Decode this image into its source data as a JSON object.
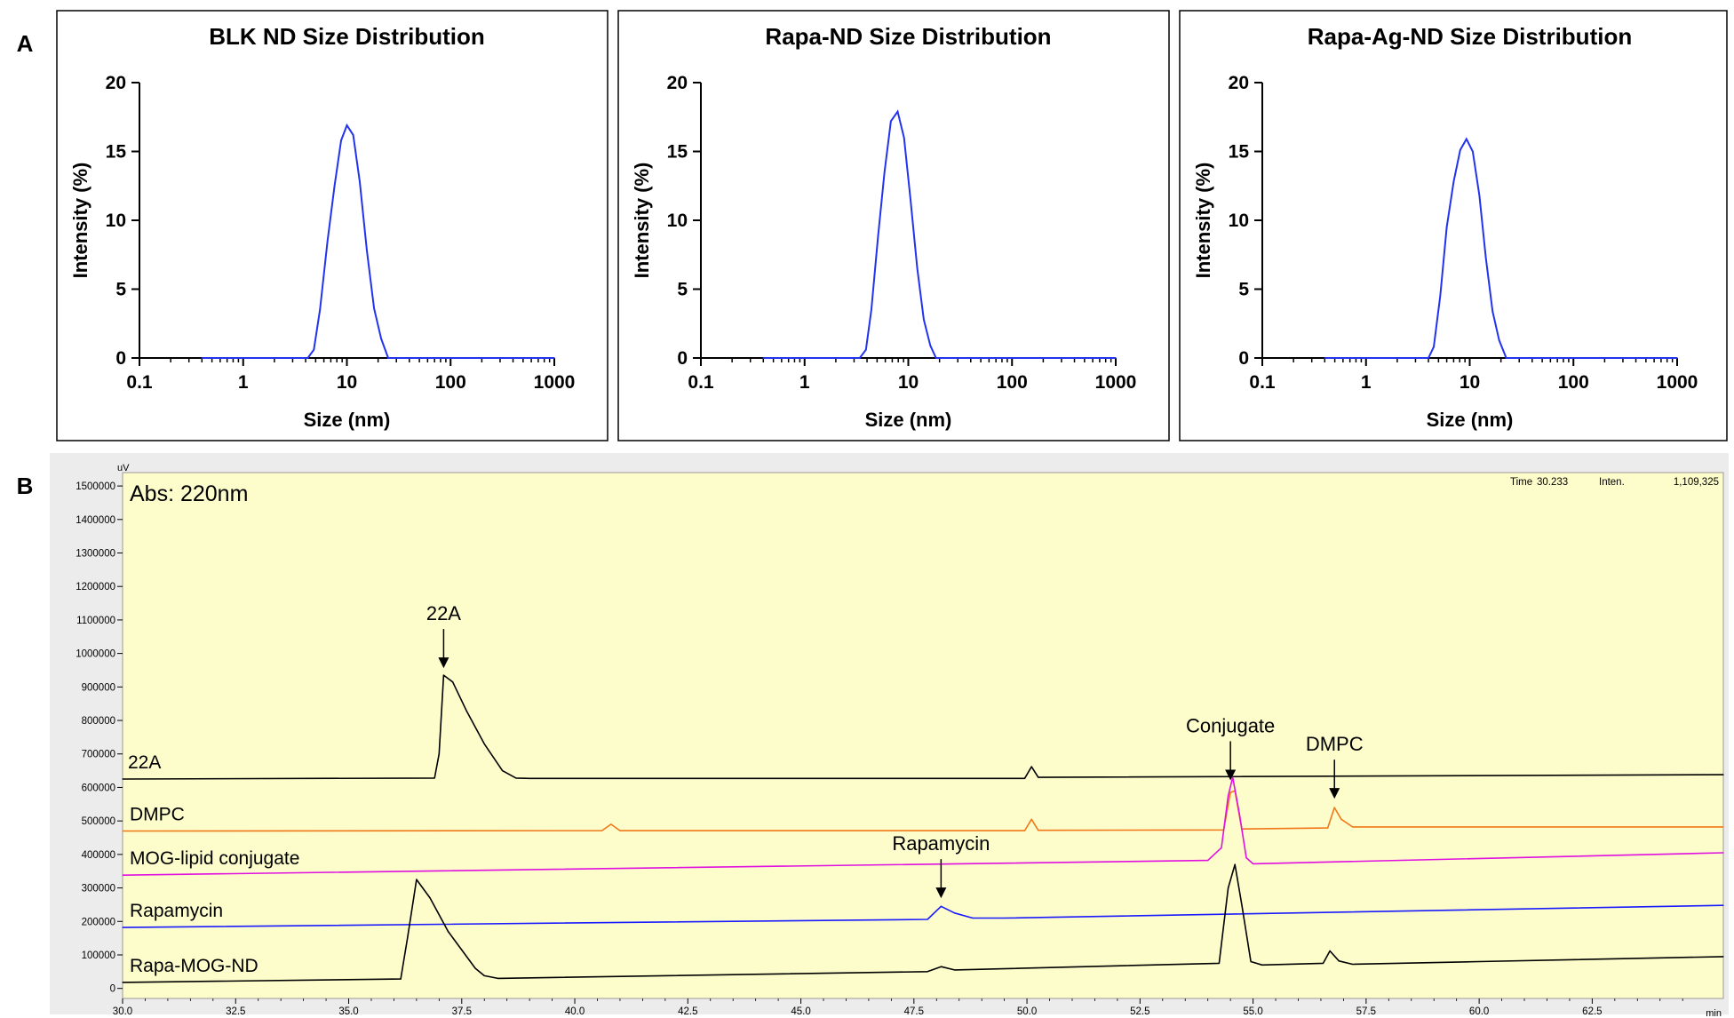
{
  "panel_labels": {
    "a": "A",
    "b": "B"
  },
  "chart_data": [
    {
      "type": "line",
      "title": "BLK ND Size Distribution",
      "xlabel": "Size (nm)",
      "ylabel": "Intensity (%)",
      "xscale": "log",
      "xlim": [
        0.1,
        1000
      ],
      "ylim": [
        0,
        20
      ],
      "xticks": [
        "0.1",
        "1",
        "10",
        "100",
        "1000"
      ],
      "yticks": [
        "0",
        "5",
        "10",
        "15",
        "20"
      ],
      "grid": false,
      "color": "#2233ee",
      "series": [
        {
          "x": [
            0.4,
            4.2,
            4.8,
            5.5,
            6.5,
            7.6,
            8.8,
            10.0,
            11.5,
            13.3,
            15.6,
            18.3,
            21.4,
            25,
            1000
          ],
          "y": [
            0,
            0,
            0.6,
            3.5,
            8.5,
            12.5,
            15.8,
            16.9,
            16.2,
            12.8,
            7.8,
            3.6,
            1.4,
            0,
            0
          ]
        }
      ]
    },
    {
      "type": "line",
      "title": "Rapa-ND Size Distribution",
      "xlabel": "Size (nm)",
      "ylabel": "Intensity (%)",
      "xscale": "log",
      "xlim": [
        0.1,
        1000
      ],
      "ylim": [
        0,
        20
      ],
      "xticks": [
        "0.1",
        "1",
        "10",
        "100",
        "1000"
      ],
      "yticks": [
        "0",
        "5",
        "10",
        "15",
        "20"
      ],
      "grid": false,
      "color": "#2233ee",
      "series": [
        {
          "x": [
            0.4,
            3.4,
            3.9,
            4.4,
            5.1,
            5.9,
            6.8,
            7.9,
            9.1,
            10.5,
            12.2,
            14.1,
            16.3,
            18.5,
            1000
          ],
          "y": [
            0,
            0,
            0.6,
            3.5,
            8.8,
            13.5,
            17.2,
            17.9,
            16.0,
            11.5,
            6.5,
            2.8,
            0.9,
            0,
            0
          ]
        }
      ]
    },
    {
      "type": "line",
      "title": "Rapa-Ag-ND Size Distribution",
      "xlabel": "Size (nm)",
      "ylabel": "Intensity (%)",
      "xscale": "log",
      "xlim": [
        0.1,
        1000
      ],
      "ylim": [
        0,
        20
      ],
      "xticks": [
        "0.1",
        "1",
        "10",
        "100",
        "1000"
      ],
      "yticks": [
        "0",
        "5",
        "10",
        "15",
        "20"
      ],
      "grid": false,
      "color": "#2233ee",
      "series": [
        {
          "x": [
            0.4,
            4.0,
            4.5,
            5.2,
            6.0,
            7.0,
            8.1,
            9.3,
            10.7,
            12.4,
            14.3,
            16.6,
            19.2,
            22.5,
            1000
          ],
          "y": [
            0,
            0,
            0.8,
            4.5,
            9.5,
            12.8,
            15.1,
            15.9,
            15.0,
            11.8,
            7.3,
            3.4,
            1.3,
            0,
            0
          ]
        }
      ]
    },
    {
      "type": "line",
      "title": "Abs: 220nm",
      "y_unit": "uV",
      "x_unit": "min",
      "xlim": [
        30.0,
        65.4
      ],
      "ylim": [
        -30000,
        1540000
      ],
      "xticks": [
        "30.0",
        "32.5",
        "35.0",
        "37.5",
        "40.0",
        "42.5",
        "45.0",
        "47.5",
        "50.0",
        "52.5",
        "55.0",
        "57.5",
        "60.0",
        "62.5"
      ],
      "yticks": [
        "0",
        "100000",
        "200000",
        "300000",
        "400000",
        "500000",
        "600000",
        "700000",
        "800000",
        "900000",
        "1000000",
        "1100000",
        "1200000",
        "1300000",
        "1400000",
        "1500000"
      ],
      "background": "#fdfccb",
      "grid": false,
      "status": {
        "time_label": "Time",
        "time_value": "30.233",
        "inten_label": "Inten.",
        "inten_value": "1,109,325"
      },
      "series": [
        {
          "name": "22A",
          "color": "#000000",
          "x": [
            30.0,
            36.9,
            37.0,
            37.1,
            37.3,
            37.6,
            38.0,
            38.4,
            38.7,
            39.0,
            49.95,
            50.1,
            50.25,
            65.4
          ],
          "y": [
            625000,
            628000,
            700000,
            935000,
            915000,
            830000,
            730000,
            650000,
            628000,
            627000,
            627000,
            662000,
            630000,
            638000
          ]
        },
        {
          "name": "DMPC",
          "color": "#f07818",
          "x": [
            30.0,
            40.6,
            40.8,
            41.0,
            49.95,
            50.1,
            50.25,
            54.35,
            54.5,
            54.6,
            54.75,
            56.65,
            56.8,
            56.95,
            57.2,
            65.4
          ],
          "y": [
            470000,
            471000,
            490000,
            471000,
            471000,
            505000,
            472000,
            473000,
            585000,
            590000,
            476000,
            479000,
            540000,
            505000,
            482000,
            482000
          ]
        },
        {
          "name": "MOG-lipid conjugate",
          "color": "#e010e0",
          "x": [
            30.0,
            54.0,
            54.3,
            54.45,
            54.55,
            54.7,
            54.85,
            55.0,
            65.4
          ],
          "y": [
            338000,
            382000,
            420000,
            575000,
            630000,
            520000,
            390000,
            372000,
            405000
          ]
        },
        {
          "name": "Rapamycin",
          "color": "#1a1aff",
          "x": [
            30.0,
            47.8,
            48.1,
            48.4,
            48.8,
            49.5,
            65.4
          ],
          "y": [
            182000,
            206000,
            245000,
            225000,
            210000,
            210000,
            248000
          ]
        },
        {
          "name": "Rapa-MOG-ND",
          "color": "#000000",
          "x": [
            30.0,
            36.15,
            36.3,
            36.5,
            36.8,
            37.2,
            37.8,
            38.0,
            38.3,
            47.8,
            48.1,
            48.4,
            54.25,
            54.45,
            54.6,
            54.75,
            54.95,
            55.2,
            56.55,
            56.7,
            56.9,
            57.2,
            60.0,
            65.4
          ],
          "y": [
            18000,
            28000,
            150000,
            325000,
            270000,
            170000,
            60000,
            38000,
            30000,
            50000,
            65000,
            55000,
            75000,
            300000,
            370000,
            250000,
            80000,
            70000,
            75000,
            112000,
            82000,
            72000,
            80000,
            95000
          ]
        }
      ],
      "annotations": [
        {
          "text": "22A",
          "x": 37.1,
          "y": 935000
        },
        {
          "text": "Conjugate",
          "x": 54.5,
          "y": 600000
        },
        {
          "text": "DMPC",
          "x": 56.8,
          "y": 545000
        },
        {
          "text": "Rapamycin",
          "x": 48.1,
          "y": 248000
        }
      ]
    }
  ]
}
